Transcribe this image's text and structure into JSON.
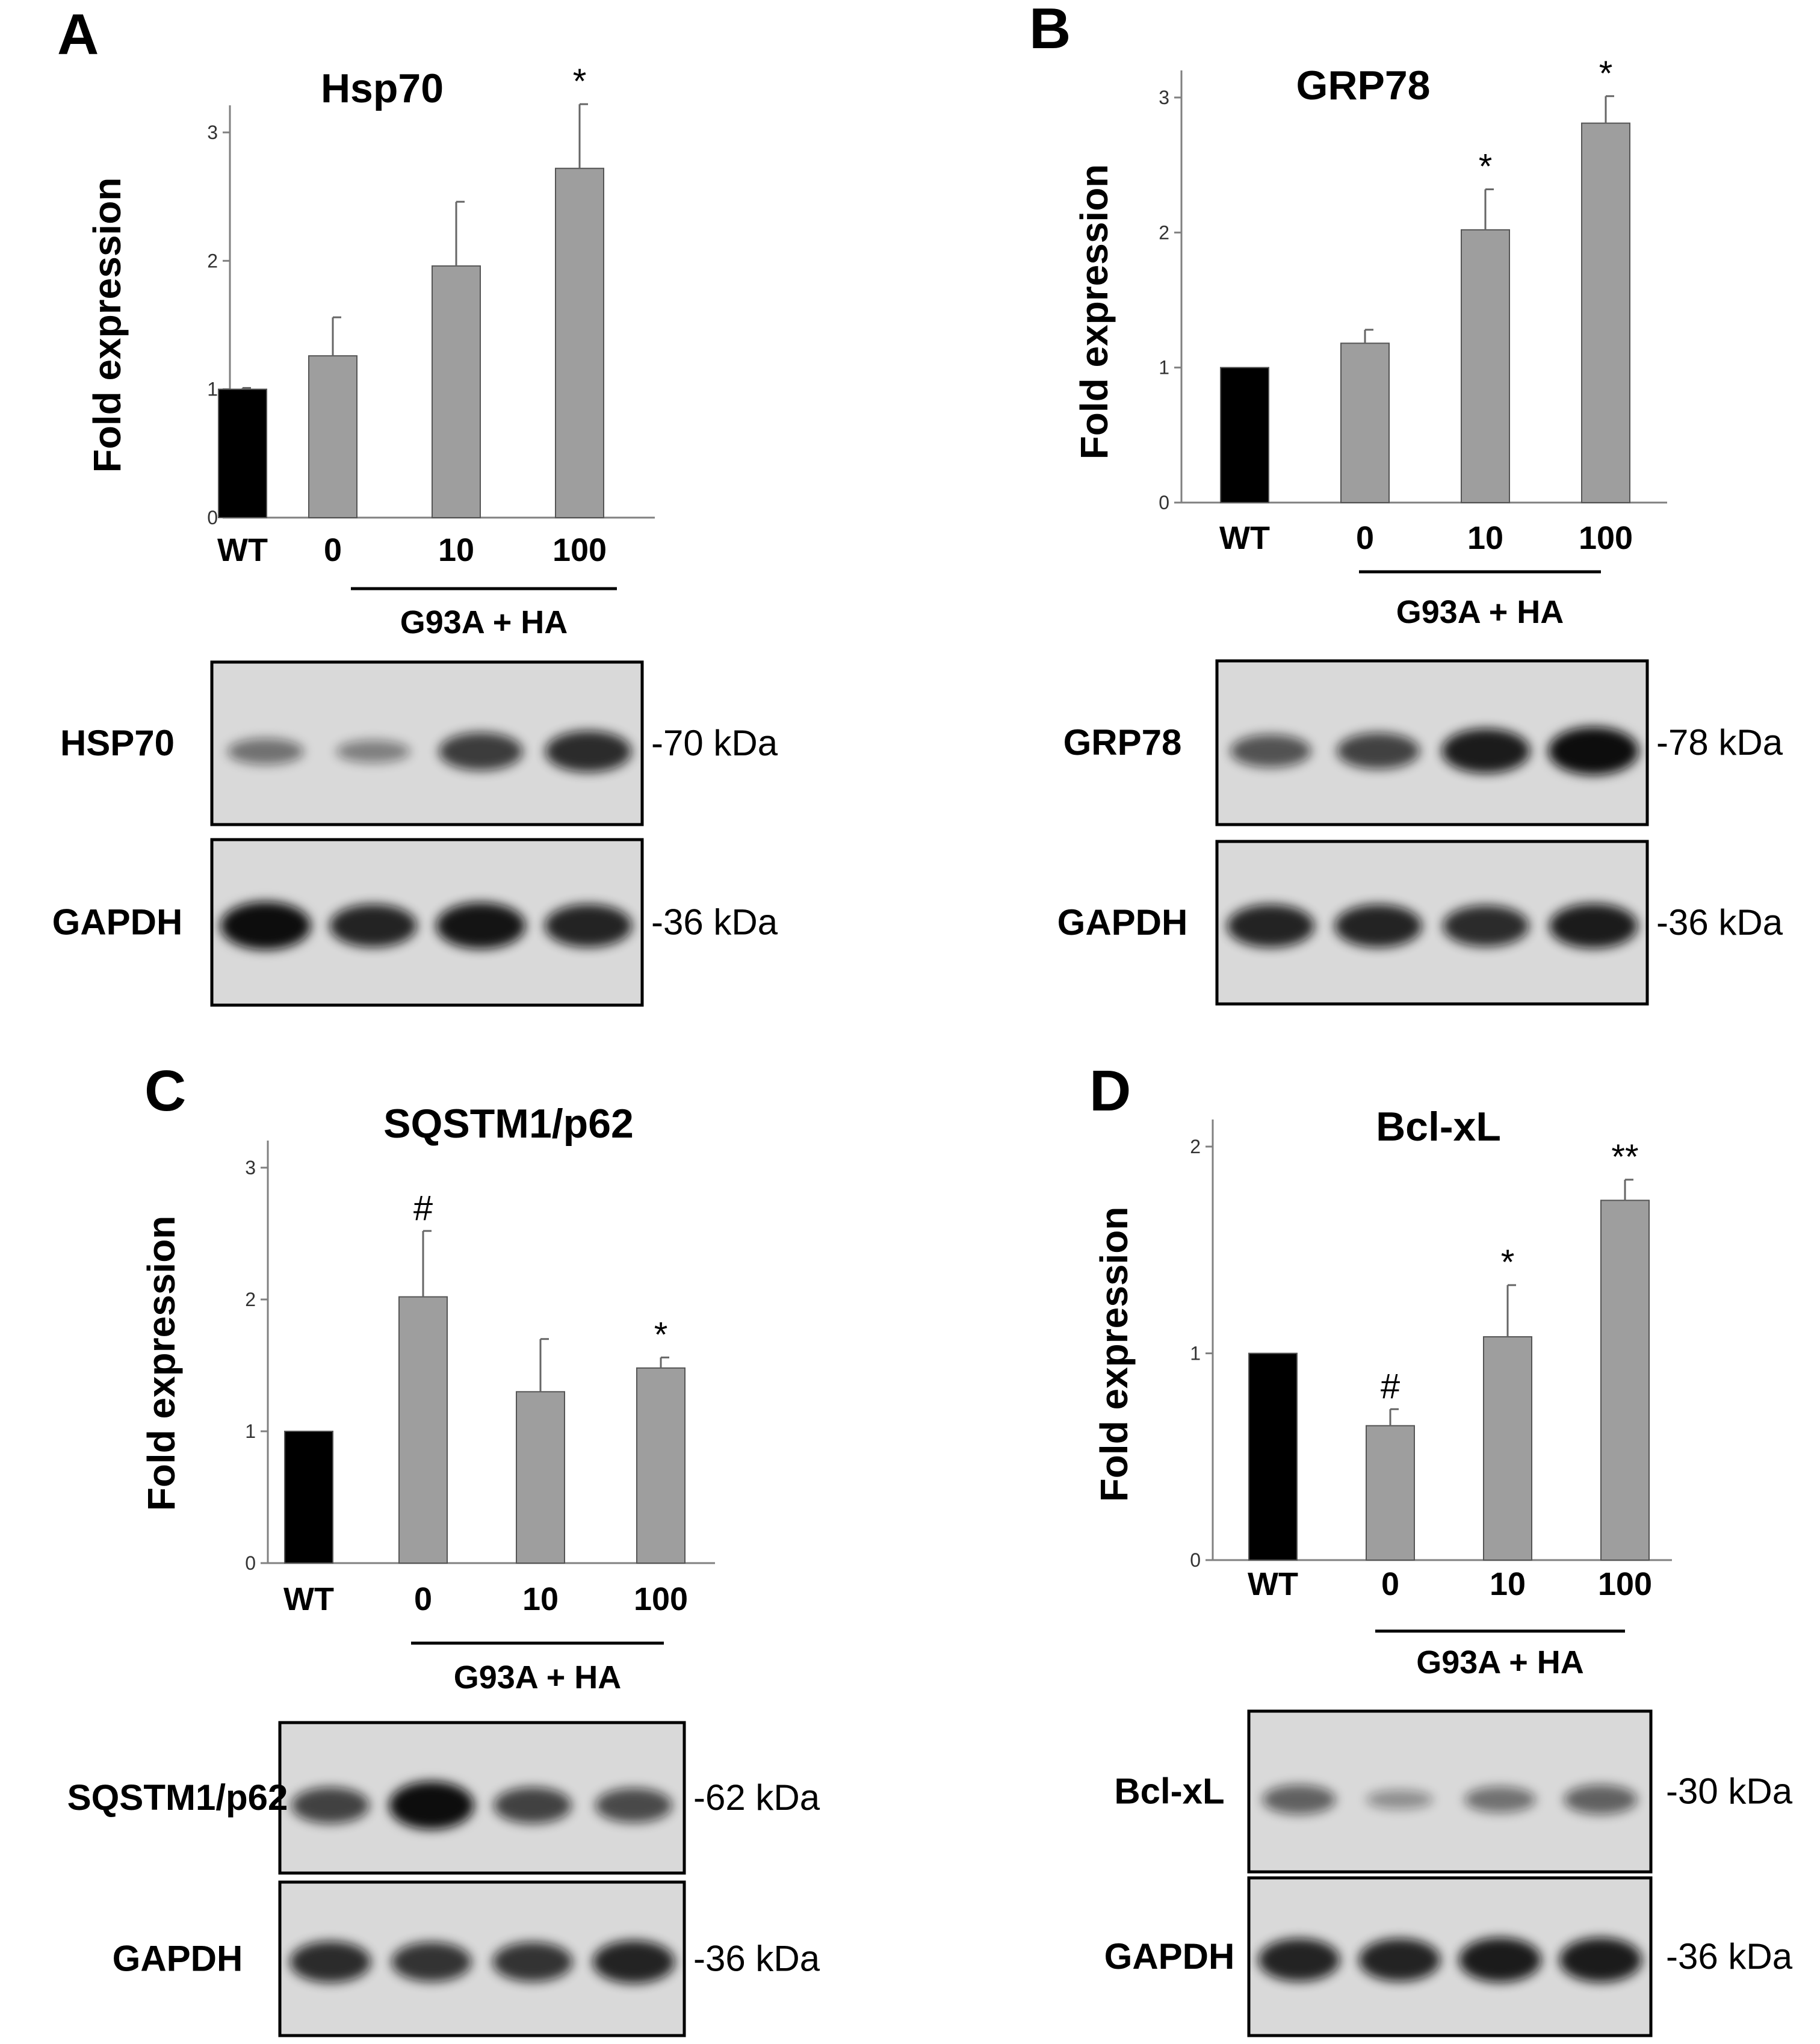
{
  "colors": {
    "wt_bar": "#000000",
    "treated_bar": "#9e9e9e",
    "axis": "#808080",
    "blot_bg": "#d9d9d9",
    "band": "#111111"
  },
  "chart_data": [
    {
      "panel": "A",
      "type": "bar",
      "title": "Hsp70",
      "ylabel": "Fold expression",
      "ylim": [
        0,
        3
      ],
      "yticks": [
        0,
        1,
        2,
        3
      ],
      "categories": [
        "WT",
        "0",
        "10",
        "100"
      ],
      "values": [
        1.0,
        1.26,
        1.96,
        2.72
      ],
      "errors": [
        0.01,
        0.3,
        0.5,
        0.5
      ],
      "significance": [
        "",
        "",
        "",
        "*"
      ],
      "group_label": "G93A + HA",
      "blot": {
        "target": {
          "label": "HSP70",
          "kda": "-70 kDa",
          "intensity": [
            0.35,
            0.25,
            0.7,
            0.8
          ]
        },
        "control": {
          "label": "GAPDH",
          "kda": "-36 kDa",
          "intensity": [
            1.0,
            0.85,
            0.95,
            0.85
          ]
        }
      }
    },
    {
      "panel": "B",
      "type": "bar",
      "title": "GRP78",
      "ylabel": "Fold expression",
      "ylim": [
        0,
        3
      ],
      "yticks": [
        0,
        1,
        2,
        3
      ],
      "categories": [
        "WT",
        "0",
        "10",
        "100"
      ],
      "values": [
        1.0,
        1.18,
        2.02,
        2.81
      ],
      "errors": [
        0.0,
        0.1,
        0.3,
        0.2
      ],
      "significance": [
        "",
        "",
        "*",
        "*"
      ],
      "group_label": "G93A + HA",
      "blot": {
        "target": {
          "label": "GRP78",
          "kda": "-78 kDa",
          "intensity": [
            0.55,
            0.65,
            0.9,
            1.0
          ]
        },
        "control": {
          "label": "GAPDH",
          "kda": "-36 kDa",
          "intensity": [
            0.85,
            0.85,
            0.8,
            0.9
          ]
        }
      }
    },
    {
      "panel": "C",
      "type": "bar",
      "title": "SQSTM1/p62",
      "ylabel": "Fold expression",
      "ylim": [
        0,
        3
      ],
      "yticks": [
        0,
        1,
        2,
        3
      ],
      "categories": [
        "WT",
        "0",
        "10",
        "100"
      ],
      "values": [
        1.0,
        2.02,
        1.3,
        1.48
      ],
      "errors": [
        0.0,
        0.5,
        0.4,
        0.08
      ],
      "significance": [
        "",
        "#",
        "",
        "*"
      ],
      "group_label": "G93A + HA",
      "blot": {
        "target": {
          "label": "SQSTM1/p62",
          "kda": "-62 kDa",
          "intensity": [
            0.65,
            1.0,
            0.65,
            0.6
          ]
        },
        "control": {
          "label": "GAPDH",
          "kda": "-36 kDa",
          "intensity": [
            0.8,
            0.75,
            0.75,
            0.85
          ]
        }
      }
    },
    {
      "panel": "D",
      "type": "bar",
      "title": "Bcl-xL",
      "ylabel": "Fold expression",
      "ylim": [
        0,
        2
      ],
      "yticks": [
        0,
        1,
        2
      ],
      "categories": [
        "WT",
        "0",
        "10",
        "100"
      ],
      "values": [
        1.0,
        0.65,
        1.08,
        1.74
      ],
      "errors": [
        0.0,
        0.08,
        0.25,
        0.1
      ],
      "significance": [
        "",
        "#",
        "*",
        "**"
      ],
      "group_label": "G93A + HA",
      "blot": {
        "target": {
          "label": "Bcl-xL",
          "kda": "-30 kDa",
          "intensity": [
            0.45,
            0.15,
            0.35,
            0.45
          ]
        },
        "control": {
          "label": "GAPDH",
          "kda": "-36 kDa",
          "intensity": [
            0.85,
            0.85,
            0.9,
            0.9
          ]
        }
      }
    }
  ]
}
